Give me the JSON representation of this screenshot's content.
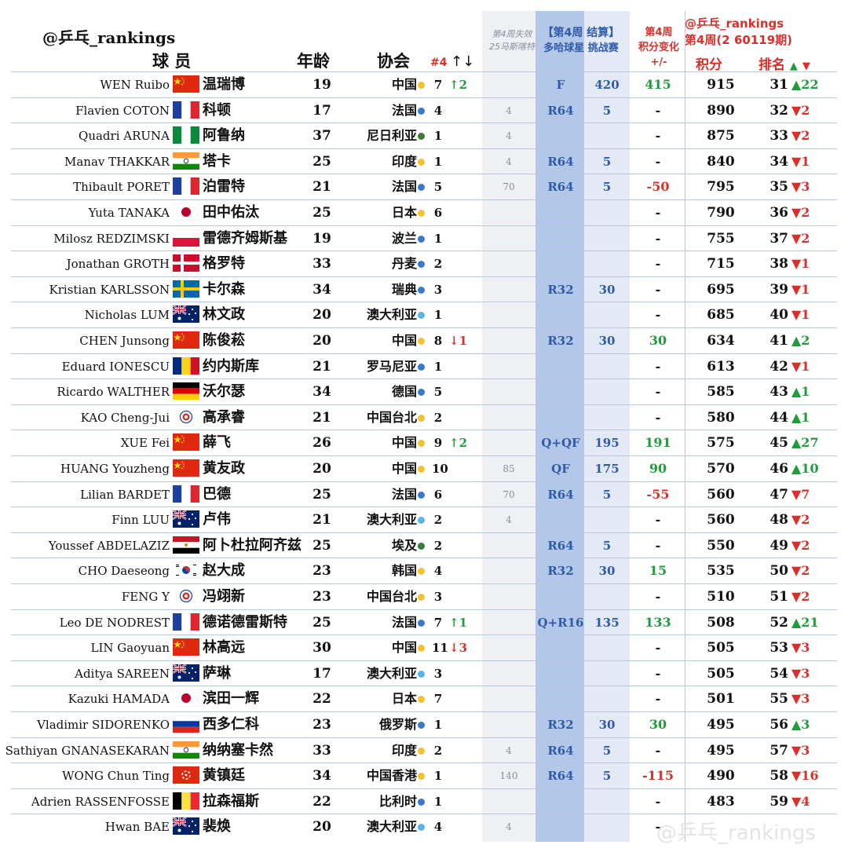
{
  "header": {
    "brand": "@乒乓_rankings",
    "col_player": "球 员",
    "col_age": "年龄",
    "col_assoc": "协会",
    "col_seed": "#4",
    "col_seed_arrows": "↑↓",
    "col_expire_line1": "第4周失效",
    "col_expire_line2": "25马斯喀特",
    "col_event_line1": "【第4周 结算】",
    "col_event_line2": "多哈球星 挑战赛",
    "col_change_line1": "第4周",
    "col_change_line2": "积分变化",
    "col_change_line3": "+/-",
    "rankings_brand": "@乒乓_rankings",
    "rankings_week": "第4周(2 60119期)",
    "col_points": "积分",
    "col_rank": "排名",
    "rank_up_icon": "▲",
    "rank_down_icon": "▼"
  },
  "watermark": "@乒乓_rankings",
  "colors": {
    "up": "#1f9d3a",
    "down": "#d9302b",
    "event_blue": "#2e5aa8",
    "band_blue": "#b3c7e8",
    "band_light": "#e3eaf6",
    "expire_gray": "#eef0f4"
  },
  "players": [
    {
      "en": "WEN Ruibo",
      "flag": "china",
      "cn": "温瑞博",
      "age": "19",
      "assoc": "中国",
      "dot": "#f2c230",
      "seed": "7",
      "seed_chg": "↑2",
      "seed_dir": "up",
      "expire": "",
      "result": "F",
      "event_pts": "420",
      "change": "415",
      "change_sign": "pos",
      "points": "915",
      "rank": "31",
      "rank_chg": "▲22",
      "rank_dir": "up"
    },
    {
      "en": "Flavien COTON",
      "flag": "france",
      "cn": "科顿",
      "age": "17",
      "assoc": "法国",
      "dot": "#3a78c8",
      "seed": "4",
      "seed_chg": "",
      "seed_dir": "",
      "expire": "4",
      "result": "R64",
      "event_pts": "5",
      "change": "-",
      "change_sign": "zero",
      "points": "890",
      "rank": "32",
      "rank_chg": "▼2",
      "rank_dir": "dn"
    },
    {
      "en": "Quadri ARUNA",
      "flag": "nigeria",
      "cn": "阿鲁纳",
      "age": "37",
      "assoc": "尼日利亚",
      "dot": "#3a7a3a",
      "seed": "1",
      "seed_chg": "",
      "seed_dir": "",
      "expire": "4",
      "result": "",
      "event_pts": "",
      "change": "-",
      "change_sign": "zero",
      "points": "875",
      "rank": "33",
      "rank_chg": "▼2",
      "rank_dir": "dn"
    },
    {
      "en": "Manav THAKKAR",
      "flag": "india",
      "cn": "塔卡",
      "age": "25",
      "assoc": "印度",
      "dot": "#f2c230",
      "seed": "1",
      "seed_chg": "",
      "seed_dir": "",
      "expire": "4",
      "result": "R64",
      "event_pts": "5",
      "change": "-",
      "change_sign": "zero",
      "points": "840",
      "rank": "34",
      "rank_chg": "▼1",
      "rank_dir": "dn"
    },
    {
      "en": "Thibault PORET",
      "flag": "france",
      "cn": "泊雷特",
      "age": "21",
      "assoc": "法国",
      "dot": "#3a78c8",
      "seed": "5",
      "seed_chg": "",
      "seed_dir": "",
      "expire": "70",
      "result": "R64",
      "event_pts": "5",
      "change": "-50",
      "change_sign": "neg",
      "points": "795",
      "rank": "35",
      "rank_chg": "▼3",
      "rank_dir": "dn"
    },
    {
      "en": "Yuta TANAKA",
      "flag": "japan",
      "cn": "田中佑汰",
      "age": "25",
      "assoc": "日本",
      "dot": "#f2c230",
      "seed": "6",
      "seed_chg": "",
      "seed_dir": "",
      "expire": "",
      "result": "",
      "event_pts": "",
      "change": "-",
      "change_sign": "zero",
      "points": "790",
      "rank": "36",
      "rank_chg": "▼2",
      "rank_dir": "dn"
    },
    {
      "en": "Milosz REDZIMSKI",
      "flag": "poland",
      "cn": "雷德齐姆斯基",
      "age": "19",
      "assoc": "波兰",
      "dot": "#3a78c8",
      "seed": "1",
      "seed_chg": "",
      "seed_dir": "",
      "expire": "",
      "result": "",
      "event_pts": "",
      "change": "-",
      "change_sign": "zero",
      "points": "755",
      "rank": "37",
      "rank_chg": "▼2",
      "rank_dir": "dn"
    },
    {
      "en": "Jonathan GROTH",
      "flag": "denmark",
      "cn": "格罗特",
      "age": "33",
      "assoc": "丹麦",
      "dot": "#3a78c8",
      "seed": "2",
      "seed_chg": "",
      "seed_dir": "",
      "expire": "",
      "result": "",
      "event_pts": "",
      "change": "-",
      "change_sign": "zero",
      "points": "715",
      "rank": "38",
      "rank_chg": "▼1",
      "rank_dir": "dn"
    },
    {
      "en": "Kristian KARLSSON",
      "flag": "sweden",
      "cn": "卡尔森",
      "age": "34",
      "assoc": "瑞典",
      "dot": "#3a78c8",
      "seed": "3",
      "seed_chg": "",
      "seed_dir": "",
      "expire": "",
      "result": "R32",
      "event_pts": "30",
      "change": "-",
      "change_sign": "zero",
      "points": "695",
      "rank": "39",
      "rank_chg": "▼1",
      "rank_dir": "dn"
    },
    {
      "en": "Nicholas LUM",
      "flag": "australia",
      "cn": "林文政",
      "age": "20",
      "assoc": "澳大利亚",
      "dot": "#5ab4e6",
      "seed": "1",
      "seed_chg": "",
      "seed_dir": "",
      "expire": "",
      "result": "",
      "event_pts": "",
      "change": "-",
      "change_sign": "zero",
      "points": "685",
      "rank": "40",
      "rank_chg": "▼1",
      "rank_dir": "dn"
    },
    {
      "en": "CHEN Junsong",
      "flag": "china",
      "cn": "陈俊菘",
      "age": "20",
      "assoc": "中国",
      "dot": "#f2c230",
      "seed": "8",
      "seed_chg": "↓1",
      "seed_dir": "dn",
      "expire": "",
      "result": "R32",
      "event_pts": "30",
      "change": "30",
      "change_sign": "pos",
      "points": "634",
      "rank": "41",
      "rank_chg": "▲2",
      "rank_dir": "up"
    },
    {
      "en": "Eduard IONESCU",
      "flag": "romania",
      "cn": "约内斯库",
      "age": "21",
      "assoc": "罗马尼亚",
      "dot": "#3a78c8",
      "seed": "1",
      "seed_chg": "",
      "seed_dir": "",
      "expire": "",
      "result": "",
      "event_pts": "",
      "change": "-",
      "change_sign": "zero",
      "points": "613",
      "rank": "42",
      "rank_chg": "▼1",
      "rank_dir": "dn"
    },
    {
      "en": "Ricardo WALTHER",
      "flag": "germany",
      "cn": "沃尔瑟",
      "age": "34",
      "assoc": "德国",
      "dot": "#3a78c8",
      "seed": "5",
      "seed_chg": "",
      "seed_dir": "",
      "expire": "",
      "result": "",
      "event_pts": "",
      "change": "-",
      "change_sign": "zero",
      "points": "585",
      "rank": "43",
      "rank_chg": "▲1",
      "rank_dir": "up"
    },
    {
      "en": "KAO Cheng-Jui",
      "flag": "tpe",
      "cn": "高承睿",
      "age": "21",
      "assoc": "中国台北",
      "dot": "#f2c230",
      "seed": "2",
      "seed_chg": "",
      "seed_dir": "",
      "expire": "",
      "result": "",
      "event_pts": "",
      "change": "-",
      "change_sign": "zero",
      "points": "580",
      "rank": "44",
      "rank_chg": "▲1",
      "rank_dir": "up"
    },
    {
      "en": "XUE Fei",
      "flag": "china",
      "cn": "薛飞",
      "age": "26",
      "assoc": "中国",
      "dot": "#f2c230",
      "seed": "9",
      "seed_chg": "↑2",
      "seed_dir": "up",
      "expire": "",
      "result": "Q+QF",
      "event_pts": "195",
      "change": "191",
      "change_sign": "pos",
      "points": "575",
      "rank": "45",
      "rank_chg": "▲27",
      "rank_dir": "up"
    },
    {
      "en": "HUANG Youzheng",
      "flag": "china",
      "cn": "黄友政",
      "age": "20",
      "assoc": "中国",
      "dot": "#f2c230",
      "seed": "10",
      "seed_chg": "",
      "seed_dir": "",
      "expire": "85",
      "result": "QF",
      "event_pts": "175",
      "change": "90",
      "change_sign": "pos",
      "points": "570",
      "rank": "46",
      "rank_chg": "▲10",
      "rank_dir": "up"
    },
    {
      "en": "Lilian BARDET",
      "flag": "france",
      "cn": "巴德",
      "age": "25",
      "assoc": "法国",
      "dot": "#3a78c8",
      "seed": "6",
      "seed_chg": "",
      "seed_dir": "",
      "expire": "70",
      "result": "R64",
      "event_pts": "5",
      "change": "-55",
      "change_sign": "neg",
      "points": "560",
      "rank": "47",
      "rank_chg": "▼7",
      "rank_dir": "dn"
    },
    {
      "en": "Finn LUU",
      "flag": "australia",
      "cn": "卢伟",
      "age": "21",
      "assoc": "澳大利亚",
      "dot": "#5ab4e6",
      "seed": "2",
      "seed_chg": "",
      "seed_dir": "",
      "expire": "4",
      "result": "",
      "event_pts": "",
      "change": "-",
      "change_sign": "zero",
      "points": "560",
      "rank": "48",
      "rank_chg": "▼2",
      "rank_dir": "dn"
    },
    {
      "en": "Youssef ABDELAZIZ",
      "flag": "egypt",
      "cn": "阿卜杜拉阿齐兹",
      "age": "25",
      "assoc": "埃及",
      "dot": "#3a7a3a",
      "seed": "2",
      "seed_chg": "",
      "seed_dir": "",
      "expire": "",
      "result": "R64",
      "event_pts": "5",
      "change": "-",
      "change_sign": "zero",
      "points": "550",
      "rank": "49",
      "rank_chg": "▼2",
      "rank_dir": "dn"
    },
    {
      "en": "CHO Daeseong",
      "flag": "korea",
      "cn": "赵大成",
      "age": "23",
      "assoc": "韩国",
      "dot": "#f2c230",
      "seed": "4",
      "seed_chg": "",
      "seed_dir": "",
      "expire": "",
      "result": "R32",
      "event_pts": "30",
      "change": "15",
      "change_sign": "pos",
      "points": "535",
      "rank": "50",
      "rank_chg": "▼2",
      "rank_dir": "dn"
    },
    {
      "en": "FENG Y",
      "flag": "tpe",
      "cn": "冯翊新",
      "age": "23",
      "assoc": "中国台北",
      "dot": "#f2c230",
      "seed": "3",
      "seed_chg": "",
      "seed_dir": "",
      "expire": "",
      "result": "",
      "event_pts": "",
      "change": "-",
      "change_sign": "zero",
      "points": "510",
      "rank": "51",
      "rank_chg": "▼2",
      "rank_dir": "dn"
    },
    {
      "en": "Leo DE NODREST",
      "flag": "france",
      "cn": "德诺德雷斯特",
      "age": "25",
      "assoc": "法国",
      "dot": "#3a78c8",
      "seed": "7",
      "seed_chg": "↑1",
      "seed_dir": "up",
      "expire": "",
      "result": "Q+R16",
      "event_pts": "135",
      "change": "133",
      "change_sign": "pos",
      "points": "508",
      "rank": "52",
      "rank_chg": "▲21",
      "rank_dir": "up"
    },
    {
      "en": "LIN Gaoyuan",
      "flag": "china",
      "cn": "林高远",
      "age": "30",
      "assoc": "中国",
      "dot": "#f2c230",
      "seed": "11",
      "seed_chg": "↓3",
      "seed_dir": "dn",
      "expire": "",
      "result": "",
      "event_pts": "",
      "change": "-",
      "change_sign": "zero",
      "points": "505",
      "rank": "53",
      "rank_chg": "▼3",
      "rank_dir": "dn"
    },
    {
      "en": "Aditya SAREEN",
      "flag": "australia",
      "cn": "萨琳",
      "age": "17",
      "assoc": "澳大利亚",
      "dot": "#5ab4e6",
      "seed": "3",
      "seed_chg": "",
      "seed_dir": "",
      "expire": "",
      "result": "",
      "event_pts": "",
      "change": "-",
      "change_sign": "zero",
      "points": "505",
      "rank": "54",
      "rank_chg": "▼3",
      "rank_dir": "dn"
    },
    {
      "en": "Kazuki HAMADA",
      "flag": "japan",
      "cn": "滨田一辉",
      "age": "22",
      "assoc": "日本",
      "dot": "#f2c230",
      "seed": "7",
      "seed_chg": "",
      "seed_dir": "",
      "expire": "",
      "result": "",
      "event_pts": "",
      "change": "-",
      "change_sign": "zero",
      "points": "501",
      "rank": "55",
      "rank_chg": "▼3",
      "rank_dir": "dn"
    },
    {
      "en": "Vladimir SIDORENKO",
      "flag": "russia",
      "cn": "西多仁科",
      "age": "23",
      "assoc": "俄罗斯",
      "dot": "#3a78c8",
      "seed": "1",
      "seed_chg": "",
      "seed_dir": "",
      "expire": "",
      "result": "R32",
      "event_pts": "30",
      "change": "30",
      "change_sign": "pos",
      "points": "495",
      "rank": "56",
      "rank_chg": "▲3",
      "rank_dir": "up"
    },
    {
      "en": "Sathiyan GNANASEKARAN",
      "flag": "india",
      "cn": "纳纳塞卡然",
      "age": "33",
      "assoc": "印度",
      "dot": "#f2c230",
      "seed": "2",
      "seed_chg": "",
      "seed_dir": "",
      "expire": "4",
      "result": "R64",
      "event_pts": "5",
      "change": "-",
      "change_sign": "zero",
      "points": "495",
      "rank": "57",
      "rank_chg": "▼3",
      "rank_dir": "dn"
    },
    {
      "en": "WONG Chun Ting",
      "flag": "hongkong",
      "cn": "黄镇廷",
      "age": "34",
      "assoc": "中国香港",
      "dot": "#f2c230",
      "seed": "1",
      "seed_chg": "",
      "seed_dir": "",
      "expire": "140",
      "result": "R64",
      "event_pts": "5",
      "change": "-115",
      "change_sign": "neg",
      "points": "490",
      "rank": "58",
      "rank_chg": "▼16",
      "rank_dir": "dn"
    },
    {
      "en": "Adrien RASSENFOSSE",
      "flag": "belgium",
      "cn": "拉森福斯",
      "age": "22",
      "assoc": "比利时",
      "dot": "#3a78c8",
      "seed": "1",
      "seed_chg": "",
      "seed_dir": "",
      "expire": "",
      "result": "",
      "event_pts": "",
      "change": "-",
      "change_sign": "zero",
      "points": "483",
      "rank": "59",
      "rank_chg": "▼4",
      "rank_dir": "dn"
    },
    {
      "en": "Hwan BAE",
      "flag": "australia",
      "cn": "裴焕",
      "age": "20",
      "assoc": "澳大利亚",
      "dot": "#5ab4e6",
      "seed": "4",
      "seed_chg": "",
      "seed_dir": "",
      "expire": "4",
      "result": "",
      "event_pts": "",
      "change": "-",
      "change_sign": "zero",
      "points": "",
      "rank": "",
      "rank_chg": "",
      "rank_dir": "dn"
    }
  ]
}
